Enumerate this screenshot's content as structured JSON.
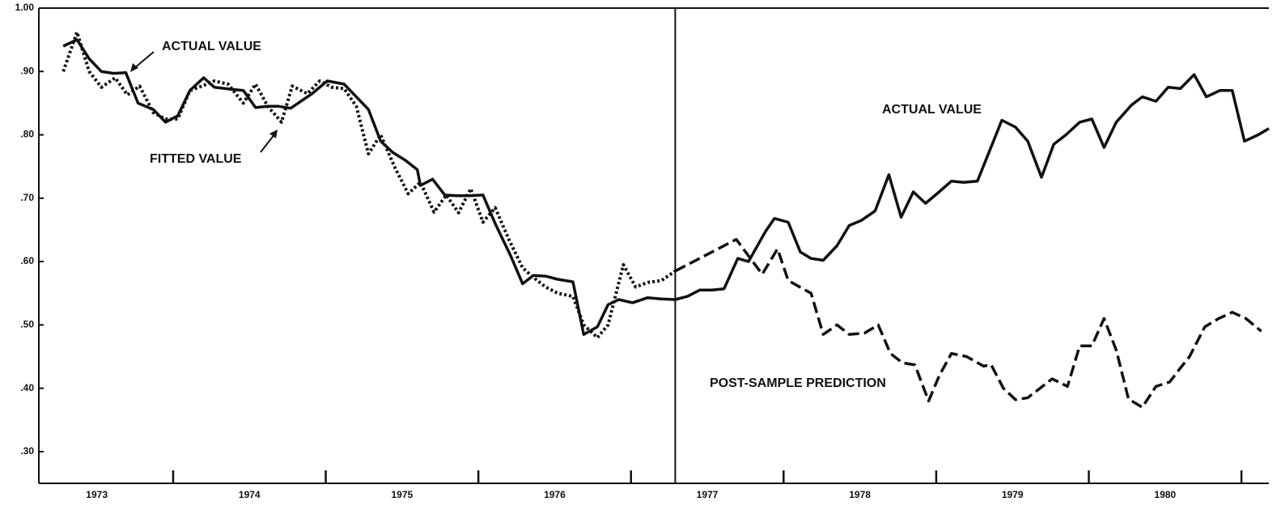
{
  "chart_data": {
    "type": "line",
    "xlim": [
      1973.12,
      1981.18
    ],
    "ylim": [
      0.25,
      1.0
    ],
    "xticks": [
      1974,
      1975,
      1976,
      1977,
      1978,
      1979,
      1980,
      1981
    ],
    "xlabels": [
      {
        "value": 1973.5,
        "label": "1973"
      },
      {
        "value": 1974.5,
        "label": "1974"
      },
      {
        "value": 1975.5,
        "label": "1975"
      },
      {
        "value": 1976.5,
        "label": "1976"
      },
      {
        "value": 1977.5,
        "label": "1977"
      },
      {
        "value": 1978.5,
        "label": "1978"
      },
      {
        "value": 1979.5,
        "label": "1979"
      },
      {
        "value": 1980.5,
        "label": "1980"
      }
    ],
    "yticks": [
      {
        "value": 1.0,
        "label": "1.00"
      },
      {
        "value": 0.9,
        "label": ".90"
      },
      {
        "value": 0.8,
        "label": ".80"
      },
      {
        "value": 0.7,
        "label": ".70"
      },
      {
        "value": 0.6,
        "label": ".60"
      },
      {
        "value": 0.5,
        "label": ".50"
      },
      {
        "value": 0.4,
        "label": ".40"
      },
      {
        "value": 0.3,
        "label": ".30"
      }
    ],
    "sample_end": 1977.29,
    "annotations": [
      "ACTUAL VALUE",
      "FITTED VALUE",
      "ACTUAL VALUE",
      "POST-SAMPLE PREDICTION"
    ],
    "series": [
      {
        "color": "#111111",
        "style": "solid",
        "x": [
          1973.28,
          1973.37,
          1973.45,
          1973.53,
          1973.61,
          1973.69,
          1973.77,
          1973.87,
          1973.95,
          1974.03,
          1974.11,
          1974.2,
          1974.27,
          1974.38,
          1974.46,
          1974.54,
          1974.62,
          1974.69,
          1974.77,
          1974.91,
          1975.01,
          1975.12,
          1975.2,
          1975.28,
          1975.36,
          1975.44,
          1975.52,
          1975.6,
          1975.62,
          1975.7,
          1975.78,
          1975.86,
          1975.94,
          1976.03,
          1976.11,
          1976.21,
          1976.29,
          1976.36,
          1976.44,
          1976.52,
          1976.62,
          1976.69,
          1976.78,
          1976.85,
          1976.92,
          1977.01,
          1977.11,
          1977.2,
          1977.29,
          1977.37,
          1977.45,
          1977.53,
          1977.61,
          1977.7,
          1977.77,
          1977.88,
          1977.94,
          1978.03,
          1978.11,
          1978.18,
          1978.26,
          1978.35,
          1978.43,
          1978.51,
          1978.6,
          1978.69,
          1978.77,
          1978.85,
          1978.93,
          1979.01,
          1979.1,
          1979.18,
          1979.27,
          1979.43,
          1979.52,
          1979.6,
          1979.69,
          1979.77,
          1979.85,
          1979.94,
          1980.02,
          1980.1,
          1980.18,
          1980.28,
          1980.35,
          1980.44,
          1980.52,
          1980.6,
          1980.69,
          1980.77,
          1980.86,
          1980.94,
          1981.02,
          1981.11,
          1981.18
        ],
        "values": [
          0.94,
          0.95,
          0.92,
          0.9,
          0.897,
          0.898,
          0.85,
          0.84,
          0.82,
          0.83,
          0.87,
          0.89,
          0.875,
          0.872,
          0.87,
          0.843,
          0.845,
          0.845,
          0.842,
          0.865,
          0.885,
          0.88,
          0.86,
          0.84,
          0.79,
          0.772,
          0.76,
          0.745,
          0.72,
          0.73,
          0.705,
          0.704,
          0.704,
          0.705,
          0.66,
          0.61,
          0.565,
          0.578,
          0.577,
          0.572,
          0.568,
          0.485,
          0.497,
          0.532,
          0.54,
          0.535,
          0.543,
          0.541,
          0.54,
          0.545,
          0.555,
          0.555,
          0.557,
          0.605,
          0.6,
          0.647,
          0.668,
          0.662,
          0.615,
          0.605,
          0.602,
          0.625,
          0.657,
          0.665,
          0.68,
          0.737,
          0.67,
          0.71,
          0.692,
          0.708,
          0.727,
          0.725,
          0.727,
          0.823,
          0.812,
          0.79,
          0.733,
          0.785,
          0.8,
          0.82,
          0.825,
          0.78,
          0.82,
          0.847,
          0.86,
          0.853,
          0.875,
          0.873,
          0.895,
          0.86,
          0.87,
          0.87,
          0.79,
          0.8,
          0.81
        ]
      },
      {
        "color": "#111111",
        "style": "dotted",
        "x": [
          1973.28,
          1973.37,
          1973.45,
          1973.53,
          1973.62,
          1973.7,
          1973.78,
          1973.87,
          1973.95,
          1974.03,
          1974.11,
          1974.19,
          1974.27,
          1974.36,
          1974.46,
          1974.54,
          1974.62,
          1974.71,
          1974.78,
          1974.88,
          1974.96,
          1975.04,
          1975.12,
          1975.2,
          1975.28,
          1975.36,
          1975.45,
          1975.54,
          1975.62,
          1975.71,
          1975.79,
          1975.87,
          1975.95,
          1976.03,
          1976.11,
          1976.2,
          1976.29,
          1976.36,
          1976.44,
          1976.52,
          1976.62,
          1976.69,
          1976.78,
          1976.85,
          1976.95,
          1977.03,
          1977.11,
          1977.2,
          1977.29
        ],
        "values": [
          0.9,
          0.962,
          0.9,
          0.875,
          0.89,
          0.863,
          0.877,
          0.835,
          0.825,
          0.825,
          0.87,
          0.877,
          0.885,
          0.88,
          0.85,
          0.88,
          0.845,
          0.82,
          0.877,
          0.865,
          0.885,
          0.875,
          0.873,
          0.845,
          0.77,
          0.8,
          0.75,
          0.707,
          0.725,
          0.678,
          0.705,
          0.677,
          0.715,
          0.662,
          0.685,
          0.635,
          0.59,
          0.575,
          0.56,
          0.55,
          0.545,
          0.5,
          0.48,
          0.5,
          0.595,
          0.56,
          0.567,
          0.57,
          0.585
        ]
      },
      {
        "color": "#111111",
        "style": "dashed",
        "x": [
          1977.29,
          1977.69,
          1977.86,
          1977.96,
          1978.03,
          1978.18,
          1978.26,
          1978.35,
          1978.43,
          1978.53,
          1978.62,
          1978.7,
          1978.78,
          1978.86,
          1978.95,
          1979.02,
          1979.1,
          1979.2,
          1979.31,
          1979.36,
          1979.44,
          1979.52,
          1979.6,
          1979.68,
          1979.76,
          1979.86,
          1979.94,
          1980.02,
          1980.1,
          1980.18,
          1980.26,
          1980.35,
          1980.44,
          1980.53,
          1980.6,
          1980.66,
          1980.76,
          1980.85,
          1980.94,
          1981.03,
          1981.13
        ],
        "values": [
          0.585,
          0.635,
          0.58,
          0.62,
          0.57,
          0.55,
          0.485,
          0.5,
          0.485,
          0.487,
          0.5,
          0.455,
          0.44,
          0.437,
          0.38,
          0.42,
          0.455,
          0.45,
          0.435,
          0.437,
          0.4,
          0.382,
          0.385,
          0.4,
          0.415,
          0.403,
          0.467,
          0.467,
          0.51,
          0.46,
          0.383,
          0.37,
          0.403,
          0.41,
          0.432,
          0.45,
          0.497,
          0.51,
          0.52,
          0.51,
          0.49
        ]
      }
    ]
  }
}
